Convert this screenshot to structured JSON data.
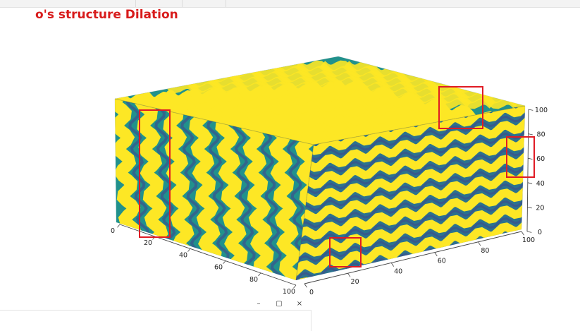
{
  "title": "o's structure Dilation",
  "window_controls": {
    "minimize": "–",
    "restore": "▢",
    "close": "×"
  },
  "colors": {
    "title": "#d81b1b",
    "highlight_box": "#e01b24",
    "viridis_high": "#fde725",
    "viridis_mid": "#21918c",
    "viridis_low": "#3b528b",
    "viridis_min": "#440154"
  },
  "chart_data": {
    "type": "3d voxel",
    "title": "o's structure Dilation",
    "colormap": "viridis",
    "x_axis": {
      "range": [
        0,
        100
      ],
      "ticks": [
        0,
        20,
        40,
        60,
        80,
        100
      ]
    },
    "y_axis": {
      "range": [
        0,
        100
      ],
      "ticks": [
        0,
        20,
        40,
        60,
        80,
        100
      ]
    },
    "z_axis": {
      "range": [
        0,
        100
      ],
      "ticks": [
        0,
        20,
        40,
        60,
        80,
        100
      ]
    },
    "grid": true,
    "highlight_boxes": 4
  }
}
